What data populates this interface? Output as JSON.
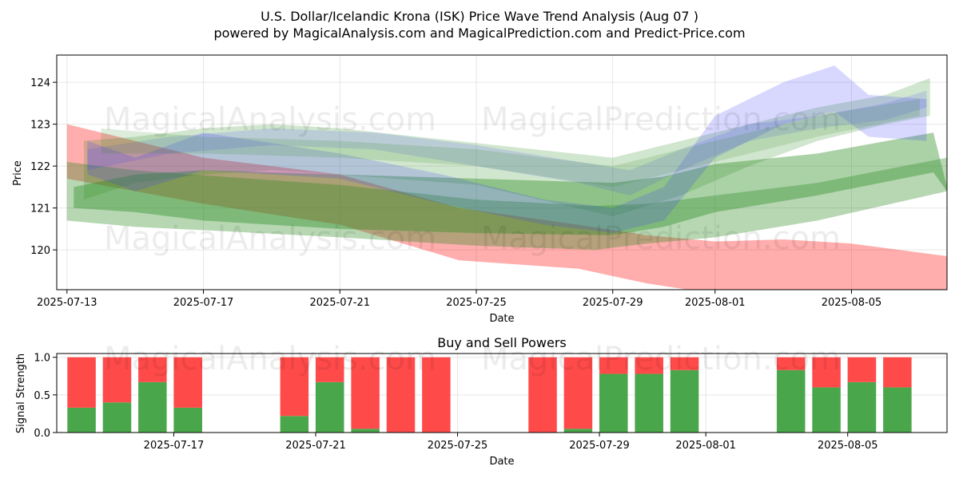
{
  "header": {
    "title_line1": "U.S. Dollar/Icelandic Krona (ISK) Price Wave Trend Analysis (Aug 07 )",
    "title_line2": "powered by MagicalAnalysis.com and MagicalPrediction.com and Predict-Price.com"
  },
  "watermarks": [
    "MagicalAnalysis.com",
    "MagicalPrediction.com"
  ],
  "colors": {
    "red": "#ff0000",
    "green": "#2e8b22",
    "blue": "#3a3aff",
    "bar_green": "#4aa64a",
    "bar_red": "#ff4a4a"
  },
  "chart_data": [
    {
      "type": "area",
      "title": "",
      "xlabel": "Date",
      "ylabel": "Price",
      "ylim": [
        119.05,
        124.65
      ],
      "xlim_days": [
        -0.3,
        25.8
      ],
      "start_date": "2025-07-13",
      "x_ticks": [
        {
          "day": 0,
          "label": "2025-07-13"
        },
        {
          "day": 4,
          "label": "2025-07-17"
        },
        {
          "day": 8,
          "label": "2025-07-21"
        },
        {
          "day": 12,
          "label": "2025-07-25"
        },
        {
          "day": 16,
          "label": "2025-07-29"
        },
        {
          "day": 19,
          "label": "2025-08-01"
        },
        {
          "day": 23,
          "label": "2025-08-05"
        }
      ],
      "y_ticks": [
        120,
        121,
        122,
        123,
        124
      ],
      "grid": true,
      "series": [
        {
          "name": "red-band",
          "color": "red",
          "opacity": 0.32,
          "x": [
            0,
            4,
            8,
            11.5,
            15,
            17,
            19,
            21,
            23,
            25.8
          ],
          "upper": [
            123.0,
            122.2,
            121.8,
            121.0,
            120.6,
            120.35,
            120.2,
            120.25,
            120.15,
            119.85
          ],
          "lower": [
            121.7,
            121.1,
            120.6,
            119.75,
            119.55,
            119.2,
            118.95,
            118.95,
            118.95,
            118.95
          ]
        },
        {
          "name": "green-band-lower",
          "color": "green",
          "opacity": 0.35,
          "x": [
            0,
            2,
            4.5,
            8,
            12,
            15.5,
            17,
            19,
            22,
            25.8
          ],
          "upper": [
            122.1,
            121.9,
            121.75,
            121.55,
            121.2,
            121.05,
            121.1,
            121.3,
            121.6,
            122.2
          ],
          "lower": [
            120.7,
            120.55,
            120.45,
            120.3,
            120.1,
            120.0,
            120.15,
            120.3,
            120.7,
            121.4
          ]
        },
        {
          "name": "green-band-mid",
          "color": "green",
          "opacity": 0.4,
          "x": [
            0.2,
            2,
            4,
            8,
            12,
            16,
            17.5,
            19,
            22,
            25.4,
            25.8
          ],
          "upper": [
            121.5,
            121.8,
            121.9,
            121.8,
            121.7,
            121.6,
            121.75,
            122.05,
            122.3,
            122.8,
            121.5
          ],
          "lower": [
            121.0,
            120.9,
            120.7,
            120.5,
            120.4,
            120.35,
            120.55,
            120.9,
            121.3,
            121.85,
            121.4
          ]
        },
        {
          "name": "green-band-upper",
          "color": "green",
          "opacity": 0.22,
          "x": [
            0.5,
            2,
            4,
            6,
            8,
            12,
            16,
            18,
            20,
            22,
            24,
            25.3
          ],
          "upper": [
            122.6,
            122.7,
            122.9,
            123.0,
            122.9,
            122.55,
            122.2,
            122.6,
            123.0,
            123.4,
            123.7,
            124.1
          ],
          "lower": [
            121.2,
            121.6,
            121.8,
            121.9,
            121.8,
            121.55,
            120.8,
            121.3,
            122.0,
            122.6,
            123.0,
            123.2
          ]
        },
        {
          "name": "blue-band",
          "color": "blue",
          "opacity": 0.2,
          "x": [
            0.6,
            2,
            4,
            8,
            11,
            14,
            16,
            17.5,
            19,
            21,
            22.5,
            23.5,
            25.2
          ],
          "upper": [
            122.6,
            122.2,
            122.8,
            122.3,
            121.8,
            121.2,
            121.0,
            121.5,
            123.2,
            124.0,
            124.4,
            123.7,
            123.6
          ],
          "lower": [
            121.8,
            121.4,
            121.9,
            121.7,
            121.1,
            120.6,
            120.4,
            120.7,
            122.2,
            123.0,
            123.3,
            122.7,
            122.6
          ]
        },
        {
          "name": "blue-band-2",
          "color": "blue",
          "opacity": 0.15,
          "x": [
            0.6,
            3,
            6,
            9,
            12,
            15,
            16.5,
            18,
            20,
            22,
            24,
            25.2
          ],
          "upper": [
            122.4,
            122.7,
            122.9,
            122.8,
            122.5,
            122.1,
            121.9,
            122.4,
            123.0,
            123.2,
            123.5,
            123.8
          ],
          "lower": [
            121.9,
            122.3,
            122.5,
            122.4,
            122.0,
            121.6,
            121.3,
            121.9,
            122.6,
            122.9,
            123.1,
            123.4
          ]
        },
        {
          "name": "grey-green-band",
          "color": "green",
          "opacity": 0.16,
          "x": [
            1,
            4,
            8,
            12,
            16,
            19,
            22,
            25
          ],
          "upper": [
            122.9,
            122.7,
            122.6,
            122.4,
            122.0,
            122.6,
            123.2,
            123.6
          ],
          "lower": [
            122.3,
            122.3,
            122.2,
            122.0,
            121.5,
            122.1,
            122.7,
            123.2
          ]
        }
      ]
    },
    {
      "type": "bar",
      "title": "Buy and Sell Powers",
      "xlabel": "Date",
      "ylabel": "Signal Strength",
      "ylim": [
        0,
        1.05
      ],
      "y_ticks": [
        "0.0",
        "0.5",
        "1.0"
      ],
      "x_ticks": [
        {
          "day": 4,
          "label": "2025-07-17"
        },
        {
          "day": 8,
          "label": "2025-07-21"
        },
        {
          "day": 12,
          "label": "2025-07-25"
        },
        {
          "day": 16,
          "label": "2025-07-29"
        },
        {
          "day": 19,
          "label": "2025-08-01"
        },
        {
          "day": 23,
          "label": "2025-08-05"
        }
      ],
      "xlim_days": [
        0.7,
        25.8
      ],
      "days": [
        1.4,
        2.4,
        3.4,
        4.4,
        7.4,
        8.4,
        9.4,
        10.4,
        11.4,
        14.4,
        15.4,
        16.4,
        17.4,
        18.4,
        21.4,
        22.4,
        23.4,
        24.4
      ],
      "buy": [
        0.33,
        0.4,
        0.67,
        0.33,
        0.22,
        0.67,
        0.05,
        0.0,
        0.0,
        0.0,
        0.05,
        0.78,
        0.78,
        0.83,
        0.83,
        0.6,
        0.67,
        0.6
      ],
      "sell": [
        0.67,
        0.6,
        0.33,
        0.67,
        0.78,
        0.33,
        0.95,
        1.0,
        1.0,
        1.0,
        0.95,
        0.22,
        0.22,
        0.17,
        0.17,
        0.4,
        0.33,
        0.4
      ]
    }
  ]
}
